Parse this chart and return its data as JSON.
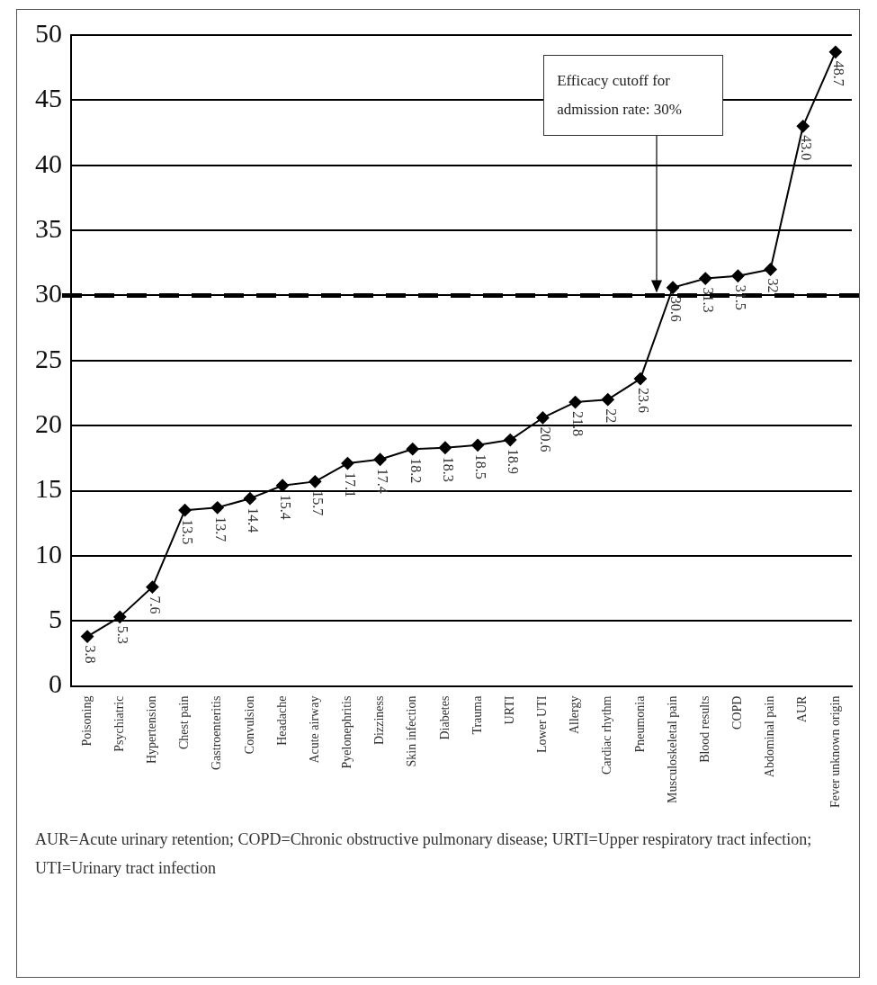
{
  "chart_data": {
    "type": "line",
    "categories": [
      "Poisoning",
      "Psychiatric",
      "Hypertension",
      "Chest pain",
      "Gastroenteritis",
      "Convulsion",
      "Headache",
      "Acute airway",
      "Pyelonephritis",
      "Dizziness",
      "Skin infection",
      "Diabetes",
      "Trauma",
      "URTI",
      "Lower UTI",
      "Allergy",
      "Cardiac rhythm",
      "Pneumonia",
      "Musculoskeletal pain",
      "Blood results",
      "COPD",
      "Abdominal pain",
      "AUR",
      "Fever unknown origin"
    ],
    "series": [
      {
        "color": "#000000",
        "values": [
          3.8,
          5.3,
          7.6,
          13.5,
          13.7,
          14.4,
          15.4,
          15.7,
          17.1,
          17.4,
          18.2,
          18.3,
          18.5,
          18.9,
          20.6,
          21.8,
          22,
          23.6,
          30.6,
          31.3,
          31.5,
          32,
          43.0,
          48.7
        ],
        "value_labels": [
          "3.8",
          "5.3",
          "7.6",
          "13.5",
          "13.7",
          "14.4",
          "15.4",
          "15.7",
          "17.1",
          "17.4",
          "18.2",
          "18.3",
          "18.5",
          "18.9",
          "20.6",
          "21.8",
          "22",
          "23.6",
          "30.6",
          "31.3",
          "31.5",
          "32",
          "43.0",
          "48.7"
        ]
      }
    ],
    "ylim": [
      0,
      50
    ],
    "yticks": [
      0,
      5,
      10,
      15,
      20,
      25,
      30,
      35,
      40,
      45,
      50
    ],
    "grid": "y",
    "marker": "diamond",
    "line_style": "solid",
    "legend": false,
    "ref_lines": [
      {
        "axis": "y",
        "value": 30,
        "color": "#000000",
        "line_style": "dashed"
      }
    ],
    "annotations": [
      "Efficacy cutoff for admission rate: 30%",
      "AUR=Acute urinary retention; COPD=Chronic obstructive pulmonary disease; URTI=Upper respiratory tract infection; UTI=Urinary tract infection"
    ]
  }
}
